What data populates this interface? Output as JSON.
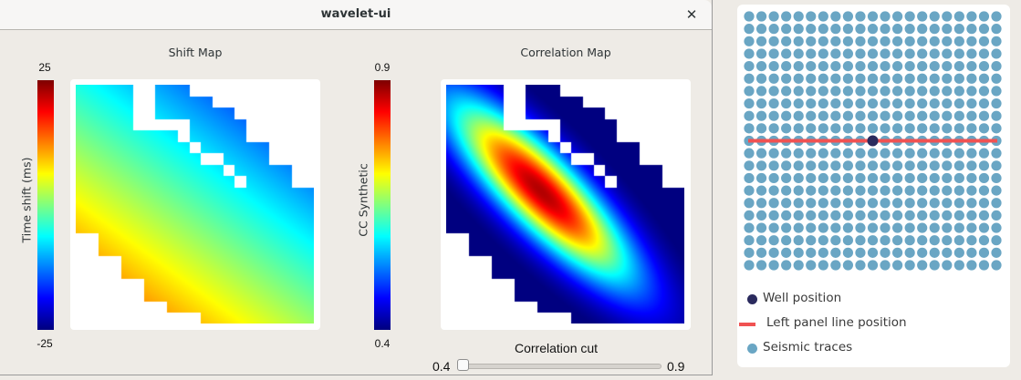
{
  "window": {
    "title": "wavelet-ui",
    "close_glyph": "✕"
  },
  "shift_map": {
    "title": "Shift Map",
    "colorbar_label": "Time shift (ms)",
    "colorbar_max": "25",
    "colorbar_min": "-25",
    "colormap": "jet"
  },
  "correlation_map": {
    "title": "Correlation Map",
    "colorbar_label": "CC Synthetic",
    "colorbar_max": "0.9",
    "colorbar_min": "0.4",
    "colormap": "jet"
  },
  "slider": {
    "label": "Correlation cut",
    "min_label": "0.4",
    "max_label": "0.9",
    "value": 0.4
  },
  "right_panel": {
    "grid_cols": 21,
    "grid_rows": 21,
    "well_row": 10,
    "well_col": 10,
    "line_row": 10,
    "colors": {
      "seismic": "#6aa6c4",
      "line": "#f05252",
      "well": "#2b2b5e"
    },
    "legend": [
      {
        "label": "Well position",
        "type": "dot",
        "color": "#2b2b5e"
      },
      {
        "label": "Left panel line position",
        "type": "line",
        "color": "#f05252"
      },
      {
        "label": "Seismic traces",
        "type": "dot",
        "color": "#6aa6c4"
      }
    ]
  },
  "chart_data": [
    {
      "type": "heatmap",
      "title": "Shift Map",
      "colorbar_label": "Time shift (ms)",
      "vmin": -25,
      "vmax": 25,
      "grid": [
        21,
        21
      ],
      "description": "Masked 21x21 grid; values increase toward bottom-left (~+12 ms orange) and decrease toward upper-right (~-12 ms blue); cyan-green (~-5 ms) at top-left; yellow band (~+5 ms) diagonally across lower half",
      "value_model": {
        "norm_base": 0.4,
        "norm_per_row": 0.022,
        "norm_per_col": -0.016
      }
    },
    {
      "type": "heatmap",
      "title": "Correlation Map",
      "colorbar_label": "CC Synthetic",
      "vmin": 0.4,
      "vmax": 0.9,
      "grid": [
        21,
        21
      ],
      "description": "Elongated diagonal ellipse of high correlation (~0.88 peak, dark red) centered near row 9.5, col 8.5, decaying to <=0.4 (dark blue) away from the diagonal",
      "value_model": {
        "center_row": 9.3,
        "center_col": 8.3,
        "sigma_along": 7.5,
        "sigma_across": 2.2,
        "peak_norm": 0.97
      }
    }
  ],
  "mask_columns": [
    [
      [
        0,
        12
      ]
    ],
    [
      [
        0,
        12
      ]
    ],
    [
      [
        0,
        14
      ]
    ],
    [
      [
        0,
        14
      ]
    ],
    [
      [
        0,
        16
      ]
    ],
    [
      [
        4,
        16
      ]
    ],
    [
      [
        4,
        18
      ]
    ],
    [
      [
        0,
        2
      ],
      [
        4,
        18
      ]
    ],
    [
      [
        0,
        2
      ],
      [
        4,
        19
      ]
    ],
    [
      [
        0,
        2
      ],
      [
        5,
        19
      ]
    ],
    [
      [
        1,
        4
      ],
      [
        6,
        19
      ]
    ],
    [
      [
        1,
        5
      ],
      [
        7,
        20
      ]
    ],
    [
      [
        2,
        5
      ],
      [
        7,
        20
      ]
    ],
    [
      [
        2,
        6
      ],
      [
        8,
        20
      ]
    ],
    [
      [
        3,
        7
      ],
      [
        9,
        20
      ]
    ],
    [
      [
        5,
        20
      ]
    ],
    [
      [
        5,
        20
      ]
    ],
    [
      [
        7,
        20
      ]
    ],
    [
      [
        7,
        20
      ]
    ],
    [
      [
        9,
        20
      ]
    ],
    [
      [
        9,
        20
      ]
    ]
  ]
}
